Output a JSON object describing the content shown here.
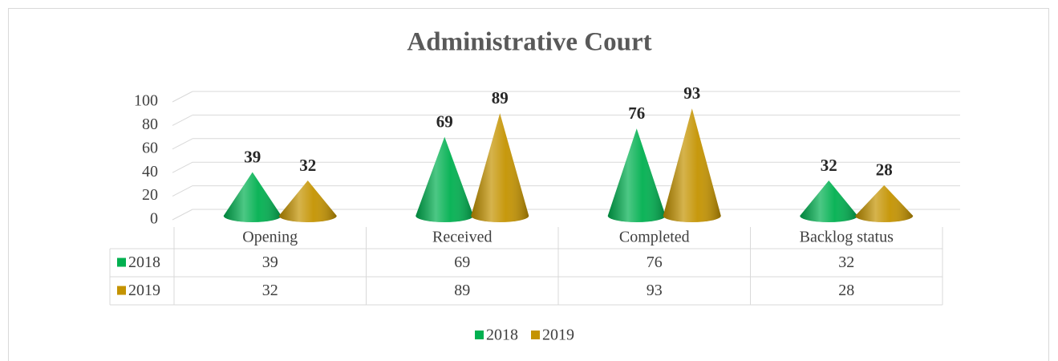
{
  "chart_data": {
    "type": "cone",
    "title": "Administrative Court",
    "categories": [
      "Opening",
      "Received",
      "Completed",
      "Backlog status"
    ],
    "series": [
      {
        "name": "2018",
        "color": "#00b050",
        "values": [
          39,
          69,
          76,
          32
        ]
      },
      {
        "name": "2019",
        "color": "#c49300",
        "values": [
          32,
          89,
          93,
          28
        ]
      }
    ],
    "ylim": [
      0,
      100
    ],
    "yticks": [
      0,
      20,
      40,
      60,
      80,
      100
    ],
    "grid": true,
    "legend": "bottom",
    "data_table": true
  }
}
